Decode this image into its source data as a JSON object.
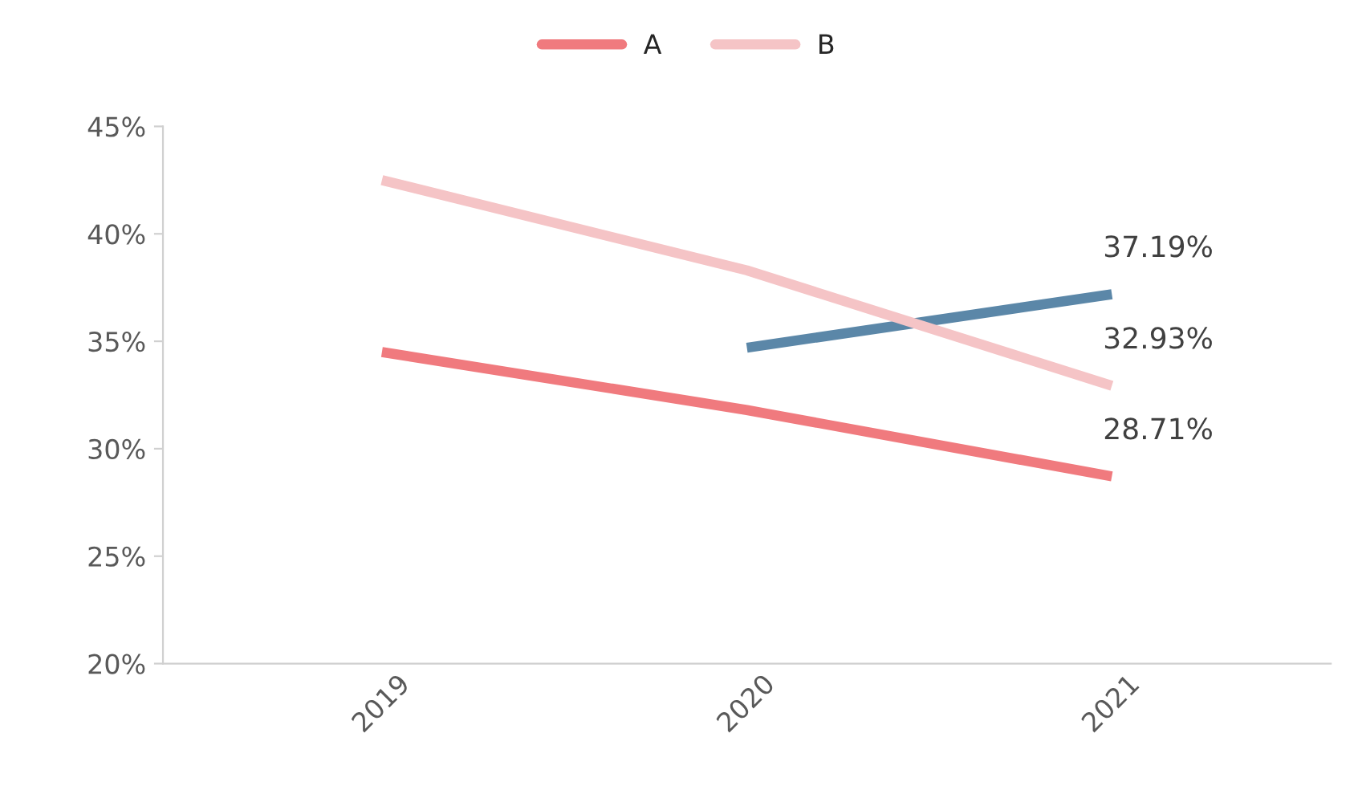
{
  "chart_data": {
    "type": "line",
    "categories": [
      "2019",
      "2020",
      "2021"
    ],
    "series": [
      {
        "color": "#5b87a8",
        "values": [
          null,
          34.7,
          37.19
        ],
        "value_labels": [
          null,
          null,
          "37.19%"
        ]
      },
      {
        "name": "A",
        "color": "#f07a7e",
        "values": [
          34.5,
          31.8,
          28.71
        ],
        "value_labels": [
          null,
          null,
          "28.71%"
        ]
      },
      {
        "name": "B",
        "color": "#f5c4c6",
        "values": [
          42.5,
          38.3,
          32.93
        ],
        "value_labels": [
          null,
          null,
          "32.93%"
        ]
      }
    ],
    "ylim": [
      20,
      45
    ],
    "yticks": [
      {
        "value": 20,
        "label": "20%"
      },
      {
        "value": 25,
        "label": "25%"
      },
      {
        "value": 30,
        "label": "30%"
      },
      {
        "value": 35,
        "label": "35%"
      },
      {
        "value": 40,
        "label": "40%"
      },
      {
        "value": 45,
        "label": "45%"
      }
    ],
    "grid": false,
    "legend": "top",
    "marker": "none",
    "line_style": "solid"
  }
}
